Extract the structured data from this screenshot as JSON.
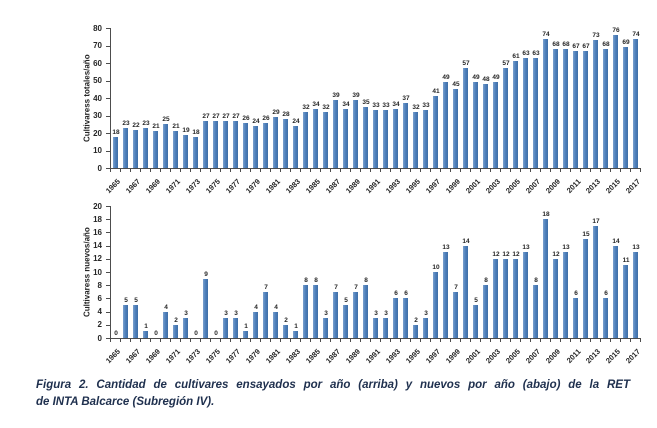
{
  "figure": {
    "caption_line1": "Figura 2. Cantidad de cultivares ensayados por año (arriba) y nuevos por año (abajo) de la RET",
    "caption_line2": "de INTA Balcarce  (Subregión IV)."
  },
  "colors": {
    "bar": "#4f81bd",
    "bar_edge": "#3f6ea6",
    "axis": "#4d4d4d",
    "text": "#262626",
    "caption_text": "#20314f",
    "background": "#ffffff"
  },
  "chart_data": [
    {
      "type": "bar",
      "title": "",
      "xlabel": "",
      "ylabel": "Cultivaress totales/año",
      "ylim": [
        0,
        80
      ],
      "ytick_step": 10,
      "grid": false,
      "legend": null,
      "bar_value_labels": true,
      "xtick_every": 2,
      "categories": [
        "1965",
        "1966",
        "1967",
        "1968",
        "1969",
        "1970",
        "1971",
        "1972",
        "1973",
        "1974",
        "1975",
        "1976",
        "1977",
        "1978",
        "1979",
        "1980",
        "1981",
        "1982",
        "1983",
        "1984",
        "1985",
        "1986",
        "1987",
        "1988",
        "1989",
        "1990",
        "1991",
        "1992",
        "1993",
        "1994",
        "1995",
        "1996",
        "1997",
        "1998",
        "1999",
        "2000",
        "2001",
        "2002",
        "2003",
        "2004",
        "2005",
        "2006",
        "2007",
        "2008",
        "2009",
        "2010",
        "2011",
        "2012",
        "2013",
        "2014",
        "2015",
        "2016",
        "2017"
      ],
      "values": [
        18,
        23,
        22,
        23,
        21,
        25,
        21,
        19,
        18,
        27,
        27,
        27,
        27,
        26,
        24,
        26,
        29,
        28,
        24,
        32,
        34,
        32,
        39,
        34,
        39,
        35,
        33,
        33,
        34,
        37,
        32,
        33,
        41,
        49,
        45,
        57,
        49,
        48,
        49,
        57,
        61,
        63,
        63,
        74,
        68,
        68,
        67,
        67,
        73,
        68,
        76,
        69,
        74
      ]
    },
    {
      "type": "bar",
      "title": "",
      "xlabel": "",
      "ylabel": "Cultivaress nuevos/año",
      "ylim": [
        0,
        20
      ],
      "ytick_step": 2,
      "grid": false,
      "legend": null,
      "bar_value_labels": true,
      "xtick_every": 2,
      "categories": [
        "1965",
        "1966",
        "1967",
        "1968",
        "1969",
        "1970",
        "1971",
        "1972",
        "1973",
        "1974",
        "1975",
        "1976",
        "1977",
        "1978",
        "1979",
        "1980",
        "1981",
        "1982",
        "1983",
        "1984",
        "1985",
        "1986",
        "1987",
        "1988",
        "1989",
        "1990",
        "1991",
        "1992",
        "1993",
        "1994",
        "1995",
        "1996",
        "1997",
        "1998",
        "1999",
        "2000",
        "2001",
        "2002",
        "2003",
        "2004",
        "2005",
        "2006",
        "2007",
        "2008",
        "2009",
        "2010",
        "2011",
        "2012",
        "2013",
        "2014",
        "2015",
        "2016",
        "2017"
      ],
      "values": [
        0,
        5,
        5,
        1,
        0,
        4,
        2,
        3,
        0,
        9,
        0,
        3,
        3,
        1,
        4,
        7,
        4,
        2,
        1,
        8,
        8,
        3,
        7,
        5,
        7,
        8,
        3,
        3,
        6,
        6,
        2,
        3,
        10,
        13,
        7,
        14,
        5,
        8,
        12,
        12,
        12,
        13,
        8,
        18,
        12,
        13,
        6,
        15,
        17,
        6,
        14,
        11,
        13
      ]
    }
  ]
}
